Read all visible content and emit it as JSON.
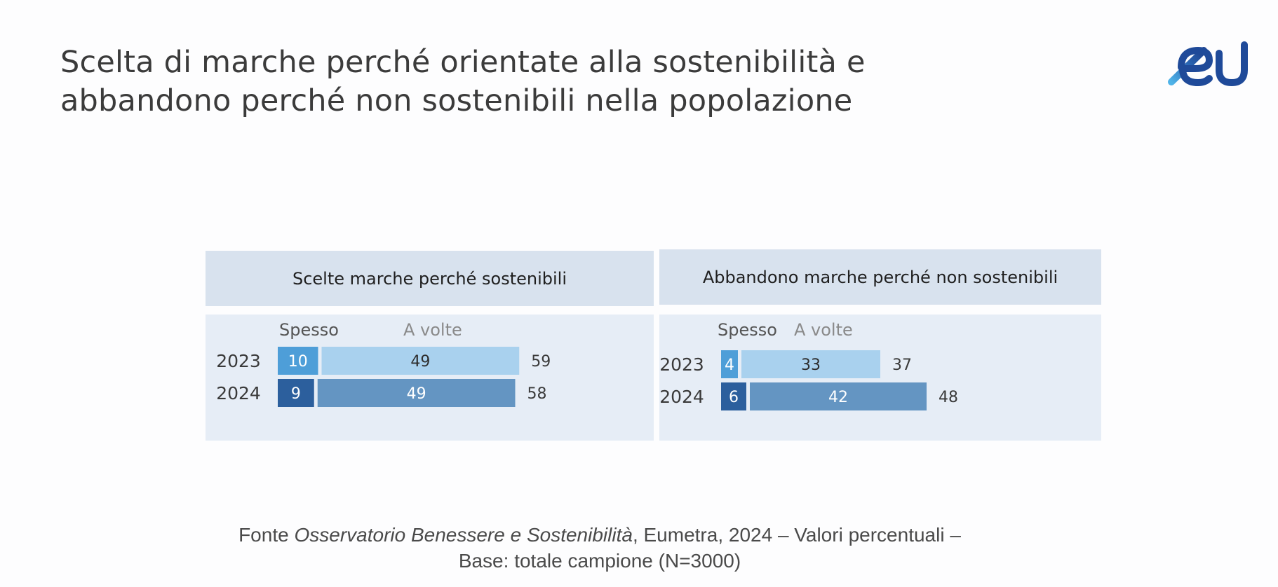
{
  "slide": {
    "title_line1": "Scelta di marche perché orientate alla sostenibilità e",
    "title_line2": "abbandono perché non sostenibili nella popolazione",
    "logo_text": "eu"
  },
  "colors": {
    "spesso_2023": "#4e9ed8",
    "a_volte_2023": "#a9d1ee",
    "spesso_2024": "#2c5f9d",
    "a_volte_2024": "#6495c2",
    "legend_spesso": "#555555",
    "legend_a_volte": "#8a8a8a"
  },
  "chart_data": [
    {
      "type": "bar",
      "orientation": "horizontal",
      "stacked": true,
      "title": "Scelte marche perché sostenibili",
      "legend": [
        "Spesso",
        "A volte"
      ],
      "categories": [
        "2023",
        "2024"
      ],
      "series": [
        {
          "name": "Spesso",
          "values": [
            10,
            9
          ]
        },
        {
          "name": "A volte",
          "values": [
            49,
            49
          ]
        }
      ],
      "totals": [
        59,
        58
      ],
      "unit": "%"
    },
    {
      "type": "bar",
      "orientation": "horizontal",
      "stacked": true,
      "title": "Abbandono marche perché non sostenibili",
      "legend": [
        "Spesso",
        "A volte"
      ],
      "categories": [
        "2023",
        "2024"
      ],
      "series": [
        {
          "name": "Spesso",
          "values": [
            4,
            6
          ]
        },
        {
          "name": "A volte",
          "values": [
            33,
            42
          ]
        }
      ],
      "totals": [
        37,
        48
      ],
      "unit": "%"
    }
  ],
  "footer": {
    "prefix": "Fonte ",
    "source_italic": "Osservatorio Benessere e Sostenibilità",
    "suffix": ", Eumetra, 2024 – Valori percentuali –",
    "line2": "Base: totale campione (N=3000)"
  }
}
